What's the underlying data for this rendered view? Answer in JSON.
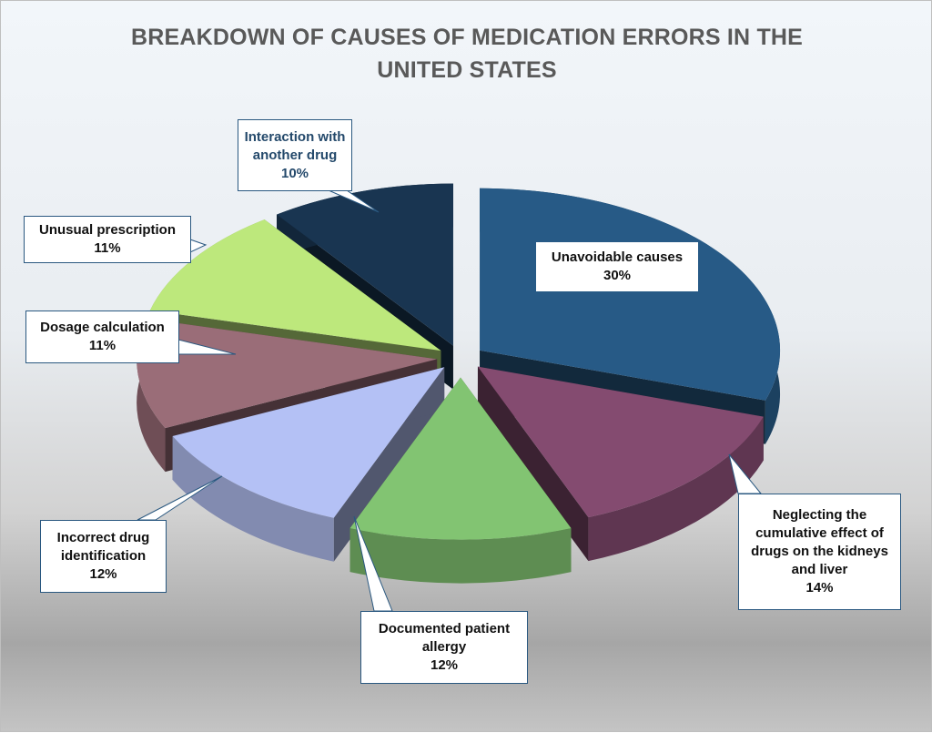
{
  "chart_data": {
    "type": "pie",
    "variant": "3d-exploded",
    "title": "BREAKDOWN OF CAUSES OF MEDICATION ERRORS IN THE UNITED STATES",
    "slices": [
      {
        "label": "Unavoidable causes",
        "value": 30,
        "value_label": "30%",
        "color": "#275a86"
      },
      {
        "label": "Neglecting the cumulative effect of drugs on the kidneys and liver",
        "value": 14,
        "value_label": "14%",
        "color": "#844b70"
      },
      {
        "label": "Documented patient allergy",
        "value": 12,
        "value_label": "12%",
        "color": "#82c472"
      },
      {
        "label": "Incorrect drug identification",
        "value": 12,
        "value_label": "12%",
        "color": "#b4c1f5"
      },
      {
        "label": "Dosage calculation",
        "value": 11,
        "value_label": "11%",
        "color": "#9a6d78"
      },
      {
        "label": "Unusual prescription",
        "value": 11,
        "value_label": "11%",
        "color": "#bde87c"
      },
      {
        "label": "Interaction with another drug",
        "value": 10,
        "value_label": "10%",
        "color": "#193551"
      }
    ],
    "legend": "none",
    "data_labels": "callouts"
  }
}
